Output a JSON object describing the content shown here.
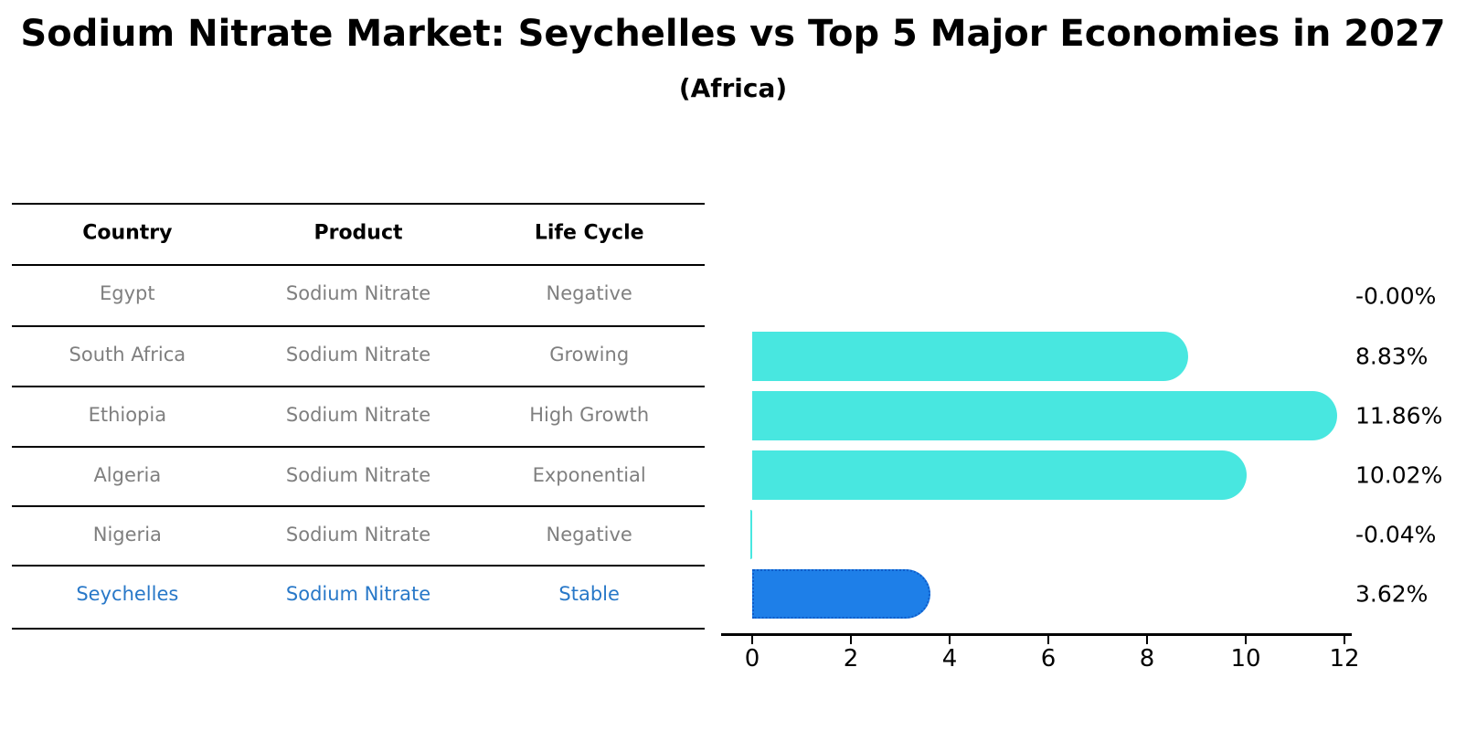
{
  "header": {
    "title": "Sodium Nitrate Market: Seychelles vs Top 5 Major Economies in 2027",
    "subtitle": "(Africa)"
  },
  "table": {
    "headers": [
      "Country",
      "Product",
      "Life Cycle"
    ],
    "rows": [
      {
        "country": "Egypt",
        "product": "Sodium Nitrate",
        "life_cycle": "Negative"
      },
      {
        "country": "South Africa",
        "product": "Sodium Nitrate",
        "life_cycle": "Growing"
      },
      {
        "country": "Ethiopia",
        "product": "Sodium Nitrate",
        "life_cycle": "High Growth"
      },
      {
        "country": "Algeria",
        "product": "Sodium Nitrate",
        "life_cycle": "Exponential"
      },
      {
        "country": "Nigeria",
        "product": "Sodium Nitrate",
        "life_cycle": "Negative"
      },
      {
        "country": "Seychelles",
        "product": "Sodium Nitrate",
        "life_cycle": "Stable"
      }
    ],
    "highlight_row": "Seychelles",
    "highlight_text_color": "#2878c8",
    "body_text_color": "#7f7f7f"
  },
  "chart_data": {
    "type": "bar",
    "orientation": "horizontal",
    "title": "",
    "xlabel": "",
    "ylabel": "",
    "categories": [
      "Egypt",
      "South Africa",
      "Ethiopia",
      "Algeria",
      "Nigeria",
      "Seychelles"
    ],
    "values": [
      -0.0,
      8.83,
      11.86,
      10.02,
      -0.04,
      3.62
    ],
    "value_labels": [
      "-0.00%",
      "8.83%",
      "11.86%",
      "10.02%",
      "-0.04%",
      "3.62%"
    ],
    "xlim": [
      0,
      12.7
    ],
    "x_ticks": [
      0,
      2,
      4,
      6,
      8,
      10,
      12
    ],
    "grid": false,
    "legend": null,
    "bar_color": "#48e7e0",
    "highlight_index": 5,
    "highlight_color": "#1e7fe8",
    "highlight_border_color": "#0f5cc9"
  }
}
